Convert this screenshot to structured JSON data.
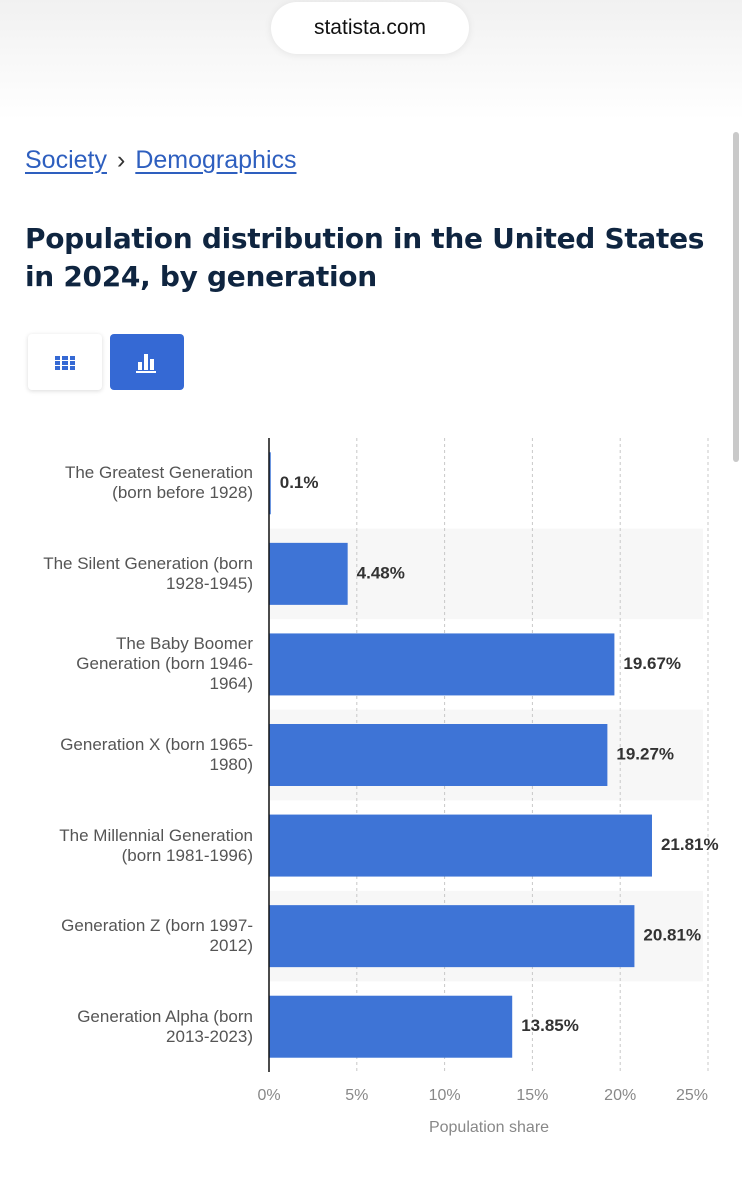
{
  "page": {
    "url": "statista.com",
    "breadcrumbs": [
      "Society",
      "Demographics"
    ]
  },
  "chart_data": {
    "type": "bar",
    "orientation": "horizontal",
    "title": "Population distribution in the United States in 2024, by generation",
    "x_label": "Population share",
    "categories": [
      "The Greatest Generation (born before 1928)",
      "The Silent Generation (born 1928-1945)",
      "The Baby Boomer Generation (born 1946-1964)",
      "Generation X (born 1965-1980)",
      "The Millennial Generation (born 1981-1996)",
      "Generation Z (born 1997-2012)",
      "Generation Alpha (born 2013-2023)"
    ],
    "values": [
      0.1,
      4.48,
      19.67,
      19.27,
      21.81,
      20.81,
      13.85
    ],
    "value_labels": [
      "0.1%",
      "4.48%",
      "19.67%",
      "19.27%",
      "21.81%",
      "20.81%",
      "13.85%"
    ],
    "color": "#3e74d6",
    "xlim": [
      0,
      25
    ],
    "xticks": [
      {
        "value": 0,
        "label": "0%"
      },
      {
        "value": 5,
        "label": "5%"
      },
      {
        "value": 10,
        "label": "10%"
      },
      {
        "value": 15,
        "label": "15%"
      },
      {
        "value": 20,
        "label": "20%"
      },
      {
        "value": 25,
        "label": "25%"
      }
    ],
    "grid": true
  }
}
